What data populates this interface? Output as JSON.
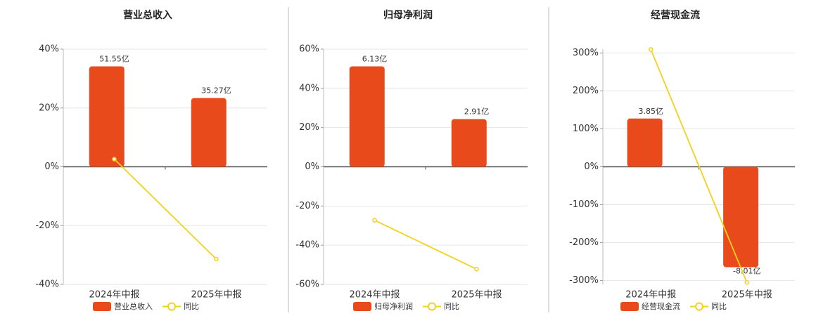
{
  "chart_data": [
    {
      "type": "bar",
      "title": "营业总收入",
      "categories": [
        "2024年中报",
        "2025年中报"
      ],
      "series": [
        {
          "name": "营业总收入",
          "type": "bar",
          "color": "#e84a1b",
          "values": [
            51.55,
            35.27
          ],
          "value_labels": [
            "51.55亿",
            "35.27亿"
          ]
        },
        {
          "name": "同比",
          "type": "line",
          "color": "#f2d21a",
          "values": [
            2.6,
            -31.4
          ]
        }
      ],
      "ylim": [
        -40,
        40
      ],
      "yticks": [
        {
          "value": -40,
          "label": "-40%"
        },
        {
          "value": -20,
          "label": "-20%"
        },
        {
          "value": 0,
          "label": "0%"
        },
        {
          "value": 20,
          "label": "20%"
        },
        {
          "value": 40,
          "label": "40%"
        }
      ],
      "grid": true
    },
    {
      "type": "bar",
      "title": "归母净利润",
      "categories": [
        "2024年中报",
        "2025年中报"
      ],
      "series": [
        {
          "name": "归母净利润",
          "type": "bar",
          "color": "#e84a1b",
          "values": [
            6.13,
            2.91
          ],
          "value_labels": [
            "6.13亿",
            "2.91亿"
          ]
        },
        {
          "name": "同比",
          "type": "line",
          "color": "#f2d21a",
          "values": [
            -27.3,
            -52.2
          ]
        }
      ],
      "ylim": [
        -60,
        60
      ],
      "yticks": [
        {
          "value": -60,
          "label": "-60%"
        },
        {
          "value": -40,
          "label": "-40%"
        },
        {
          "value": -20,
          "label": "-20%"
        },
        {
          "value": 0,
          "label": "0%"
        },
        {
          "value": 20,
          "label": "20%"
        },
        {
          "value": 40,
          "label": "40%"
        },
        {
          "value": 60,
          "label": "60%"
        }
      ],
      "grid": true
    },
    {
      "type": "bar",
      "title": "经营现金流",
      "categories": [
        "2024年中报",
        "2025年中报"
      ],
      "series": [
        {
          "name": "经营现金流",
          "type": "bar",
          "color": "#e84a1b",
          "values": [
            3.85,
            -8.01
          ],
          "value_labels": [
            "3.85亿",
            "-8.01亿"
          ]
        },
        {
          "name": "同比",
          "type": "line",
          "color": "#f2d21a",
          "values": [
            309,
            -305
          ]
        }
      ],
      "ylim": [
        -310,
        310
      ],
      "yticks": [
        {
          "value": -300,
          "label": "-300%"
        },
        {
          "value": -200,
          "label": "-200%"
        },
        {
          "value": -100,
          "label": "-100%"
        },
        {
          "value": 0,
          "label": "0%"
        },
        {
          "value": 100,
          "label": "100%"
        },
        {
          "value": 200,
          "label": "200%"
        },
        {
          "value": 300,
          "label": "300%"
        }
      ],
      "grid": true
    }
  ]
}
